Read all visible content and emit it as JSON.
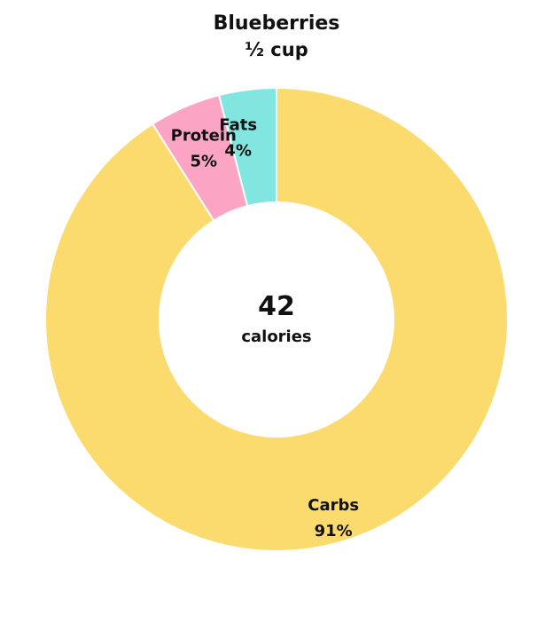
{
  "chart_data": {
    "type": "pie",
    "style": "donut",
    "title": "Blueberries",
    "subtitle": "½ cup",
    "center_value": "42",
    "center_label": "calories",
    "slices": [
      {
        "name": "Carbs",
        "value": 91,
        "label": "91%",
        "color": "#fcdb6e"
      },
      {
        "name": "Protein",
        "value": 5,
        "label": "5%",
        "color": "#fca4c4"
      },
      {
        "name": "Fats",
        "value": 4,
        "label": "4%",
        "color": "#82e6e0"
      }
    ],
    "start": "top",
    "direction": "clockwise"
  }
}
